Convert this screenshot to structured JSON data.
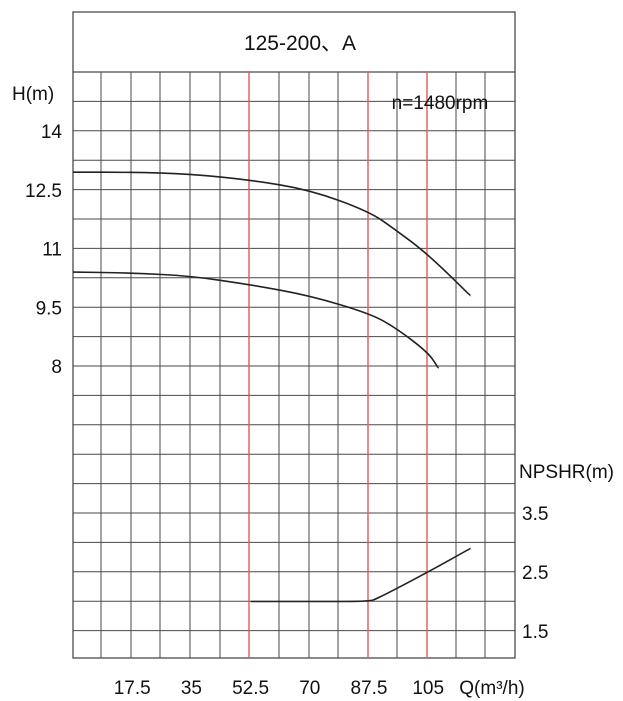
{
  "chart_data": {
    "type": "line",
    "title": "125-200、A",
    "annotation": "n=1480rpm",
    "x_axis": {
      "label": "Q(m³/h)",
      "ticks": [
        17.5,
        35,
        52.5,
        70,
        87.5,
        105
      ],
      "tick_labels": [
        "17.5",
        "35",
        "52.5",
        "70",
        "87.5",
        "105"
      ],
      "range": [
        0,
        123
      ],
      "highlight_lines": [
        52.5,
        87.5,
        105
      ]
    },
    "y_axis_head": {
      "label": "H(m)",
      "ticks": [
        14,
        12.5,
        11,
        9.5,
        8
      ],
      "tick_labels": [
        "14",
        "12.5",
        "11",
        "9.5",
        "8"
      ]
    },
    "y_axis_npshr": {
      "label": "NPSHR(m)",
      "ticks": [
        3.5,
        2.5,
        1.5
      ],
      "tick_labels": [
        "3.5",
        "2.5",
        "1.5"
      ]
    },
    "series": [
      {
        "axis": "head",
        "points": [
          [
            0,
            12.95
          ],
          [
            17.5,
            12.95
          ],
          [
            35,
            12.9
          ],
          [
            52.5,
            12.75
          ],
          [
            70,
            12.5
          ],
          [
            87.5,
            11.95
          ],
          [
            95,
            11.5
          ],
          [
            105,
            10.85
          ],
          [
            117.5,
            9.8
          ]
        ]
      },
      {
        "axis": "head",
        "points": [
          [
            0,
            10.4
          ],
          [
            17.5,
            10.38
          ],
          [
            35,
            10.3
          ],
          [
            52.5,
            10.08
          ],
          [
            70,
            9.8
          ],
          [
            87.5,
            9.35
          ],
          [
            95,
            9.0
          ],
          [
            105,
            8.35
          ],
          [
            108,
            7.95
          ]
        ]
      },
      {
        "axis": "npshr",
        "points": [
          [
            52.5,
            2.0
          ],
          [
            70,
            2.0
          ],
          [
            87.5,
            2.0
          ],
          [
            90,
            2.05
          ],
          [
            105,
            2.5
          ],
          [
            117.5,
            2.9
          ]
        ]
      }
    ],
    "grid": true,
    "colors": {
      "grid": "#4a4a4a",
      "highlight": "#e05a5a",
      "curve": "#222222",
      "background": "#ffffff"
    }
  }
}
